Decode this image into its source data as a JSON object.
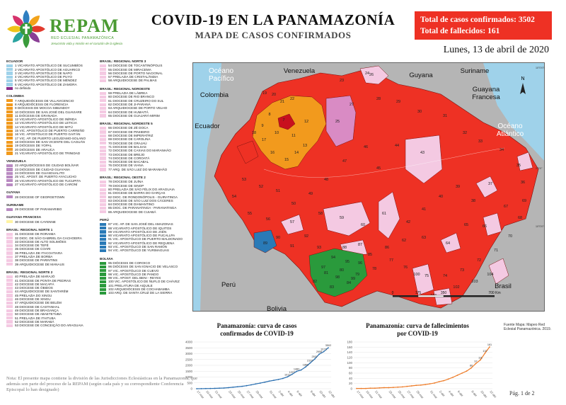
{
  "header": {
    "brand": "REPAM",
    "brand_sub": "RED ECLESIAL PANAMAZÓNICA",
    "brand_tag": "Jesucristo vida y misión en el corazón de la Iglesia",
    "title": "COVID-19 EN LA PANAMAZONÍA",
    "subtitle": "MAPA DE CASOS CONFIRMADOS",
    "total_cases": "Total de casos confirmados: 3502",
    "total_deaths": "Total de fallecidos: 161",
    "date": "Lunes, 13 de abril de 2020"
  },
  "colors": {
    "red": "#ee3124",
    "light_pink": "#f4c9e2",
    "orange": "#f29a1d",
    "dark_red": "#c8101e",
    "green": "#2a9a3c",
    "blue": "#2a7ab7",
    "purple": "#b98ac2",
    "light_blue": "#9fd2ea",
    "yellow": "#fff4a3",
    "gray": "#b5b5b5"
  },
  "legend": {
    "col1": [
      {
        "head": "ECUADOR"
      },
      {
        "color": "#9fd2ea",
        "label": "1  VICARIATO APOSTÓLICO DE SUCUMBÍOS"
      },
      {
        "color": "#9fd2ea",
        "label": "2  VICARIATO APOSTÓLICO DE AGUARICO"
      },
      {
        "color": "#9fd2ea",
        "label": "3  VICARIATO APOSTÓLICO DE NAPO"
      },
      {
        "color": "#9fd2ea",
        "label": "4  VICARIATO APOSTÓLICO DE PUYO"
      },
      {
        "color": "#9fd2ea",
        "label": "5  VICARIATO APOSTÓLICO DE MÉNDEZ"
      },
      {
        "color": "#9fd2ea",
        "label": "6  VICARIATO APOSTÓLICO DE ZAMORA"
      },
      {
        "color": "#8b2d8b",
        "label": "no definido"
      },
      {
        "head": "COLOMBIA"
      },
      {
        "color": "#f29a1d",
        "label": "7  ARQUIDIÓCESIS DE VILLAVICENCIO"
      },
      {
        "color": "#f29a1d",
        "label": "8  ARQUIDIÓCESIS DE FLORENCIA"
      },
      {
        "color": "#f29a1d",
        "label": "9  DIÓCESIS DE MOCOA-SIBUNDOY"
      },
      {
        "color": "#f29a1d",
        "label": "10  DIÓCESIS DE SAN JOSÉ DEL GUAVIARE"
      },
      {
        "color": "#f29a1d",
        "label": "11  DIÓCESIS DE GRANADA"
      },
      {
        "color": "#f29a1d",
        "label": "12  VICARIATO APOSTÓLICO DE INÍRIDA"
      },
      {
        "color": "#f29a1d",
        "label": "13  VICARIATO APOSTÓLICO DE LETICIA"
      },
      {
        "color": "#f29a1d",
        "label": "14  VICARIATO APOSTÓLICO DE MITÚ"
      },
      {
        "color": "#f29a1d",
        "label": "15  VIC. APOSTÓLICO DE PUERTO CARREÑO"
      },
      {
        "color": "#f29a1d",
        "label": "16  VIC. APOSTÓLICO DE PUERTO GAITÁN"
      },
      {
        "color": "#f29a1d",
        "label": "17  VIC. AP. DE PUERTO LEGUÍZAMO-SOLANO"
      },
      {
        "color": "#f29a1d",
        "label": "18  DIÓCESIS DE SAN VICENTE DEL CAGUÁN"
      },
      {
        "color": "#f29a1d",
        "label": "19  DIÓCESIS DE YOPAL"
      },
      {
        "color": "#f29a1d",
        "label": "20  DIÓCESIS DE ARAUCA"
      },
      {
        "color": "#f29a1d",
        "label": "21  VICARIATO APOSTÓLICO DE TRINIDAD"
      },
      {
        "head": "VENEZUELA"
      },
      {
        "color": "#b98ac2",
        "label": "22  ARQUIDIÓCESIS DE CIUDAD BOLÍVAR"
      },
      {
        "color": "#b98ac2",
        "label": "23  DIÓCESIS DE CIUDAD GUAYANA"
      },
      {
        "color": "#b98ac2",
        "label": "24  DIÓCESIS DE GUASDUALITO"
      },
      {
        "color": "#b98ac2",
        "label": "25  VIC. APOST. DE PUERTO AYACUCHO"
      },
      {
        "color": "#b98ac2",
        "label": "26  VICARIATO APOSTÓLICO DE TUCUPITA"
      },
      {
        "color": "#b98ac2",
        "label": "27  VICARIATO APOSTÓLICO DE CARONÍ"
      },
      {
        "head": "GUYANA"
      },
      {
        "color": "#b98ac2",
        "label": "28  DIOCESE OF GEORGETOWN"
      },
      {
        "head": "SURINAME"
      },
      {
        "color": "#b98ac2",
        "label": "29  DIOCESE OF PARAMARIBO"
      },
      {
        "head": "GUAYANA FRANCESA"
      },
      {
        "color": "#fff4a3",
        "label": "30  DIOCESE DE CAYENNE"
      },
      {
        "head": "BRASIL: REGIONAL NORTE 1"
      },
      {
        "color": "#f4c9e2",
        "label": "31  DIOCESE DE RORAIMA"
      },
      {
        "color": "#f4c9e2",
        "label": "32  DIOC. DE SÃO GABRIEL DA CACHOEIRA"
      },
      {
        "color": "#f4c9e2",
        "label": "33  DIOCESE DE ALTO SOLIMÕES"
      },
      {
        "color": "#f4c9e2",
        "label": "34  DIOCESE DE TEFÉ"
      },
      {
        "color": "#f4c9e2",
        "label": "35  DIOCESE DE COARI"
      },
      {
        "color": "#f4c9e2",
        "label": "36  PRELAZIA DE ITACOATIARA"
      },
      {
        "color": "#f4c9e2",
        "label": "37  PRELAZIA DE BORBA"
      },
      {
        "color": "#f4c9e2",
        "label": "38  DIOCESE DE PARINTINS"
      },
      {
        "color": "#f4c9e2",
        "label": "39  ARQUIDIOCESE DE MANAUS"
      },
      {
        "head": "BRASIL: REGIONAL NORTE 2"
      },
      {
        "color": "#f4c9e2",
        "label": "40  PRELAZIA DE MARAJÓ"
      },
      {
        "color": "#f4c9e2",
        "label": "41  DIOCESE DE PONTA DE PEDRAS"
      },
      {
        "color": "#f4c9e2",
        "label": "42  DIOCESE DE MACAPÁ"
      },
      {
        "color": "#f4c9e2",
        "label": "43  DIOCESE DE ÓBIDOS"
      },
      {
        "color": "#f4c9e2",
        "label": "44  ARQUIDIOCESE DE SANTARÉM"
      },
      {
        "color": "#f4c9e2",
        "label": "45  PRELAZIA DO XINGU"
      },
      {
        "color": "#f4c9e2",
        "label": "46  DIOCESE DE XINGU"
      },
      {
        "color": "#f4c9e2",
        "label": "47  ARQUIDIOCESE DE BELÉM"
      },
      {
        "color": "#f4c9e2",
        "label": "48  DIOCESE DE CASTANHAL"
      },
      {
        "color": "#f4c9e2",
        "label": "49  DIOCESE DE BRAGANÇA"
      },
      {
        "color": "#f4c9e2",
        "label": "50  DIOCESE DE ABAETETUBA"
      },
      {
        "color": "#f4c9e2",
        "label": "51  PRELAZIA DE ITAITUBA"
      },
      {
        "color": "#f4c9e2",
        "label": "52  DIOCESE DE MARABÁ"
      },
      {
        "color": "#f4c9e2",
        "label": "53  DIOCESE DE CONCEIÇÃO DO ARAGUAIA"
      }
    ],
    "col2": [
      {
        "head": "BRASIL: REGIONAL NORTE 3"
      },
      {
        "color": "#f4c9e2",
        "label": "54  DIOCESE DE TOCANTINÓPOLIS"
      },
      {
        "color": "#f4c9e2",
        "label": "55  DIOCESE DE MIRACEMA"
      },
      {
        "color": "#f4c9e2",
        "label": "56  DIOCESE DE PORTO NACIONAL"
      },
      {
        "color": "#f4c9e2",
        "label": "57  PRELAZIA DE CRISTALÂNDIA"
      },
      {
        "color": "#f4c9e2",
        "label": "58  ARQUIDIOCESE DE PALMAS"
      },
      {
        "head": "BRASIL: REGIONAL NOROESTE"
      },
      {
        "color": "#f4c9e2",
        "label": "59  PRELAZIA DE LÁBREA"
      },
      {
        "color": "#f4c9e2",
        "label": "60  DIOCESE DE RIO BRANCO"
      },
      {
        "color": "#f4c9e2",
        "label": "61  DIOCESE DE CRUZEIRO DO SUL"
      },
      {
        "color": "#f4c9e2",
        "label": "62  DIOCESE DE JI-PARANÁ"
      },
      {
        "color": "#f4c9e2",
        "label": "63  ARQUIDIOCESE DE PORTO VELHO"
      },
      {
        "color": "#f4c9e2",
        "label": "64  DIOCESE DE HUMAITÁ"
      },
      {
        "color": "#f4c9e2",
        "label": "65  DIOCESE DE GUAJARÁ-MIRIM"
      },
      {
        "head": "BRASIL: REGIONAL NORDESTE 5"
      },
      {
        "color": "#f4c9e2",
        "label": "66  DIOCESE DE ZÉ DOCA"
      },
      {
        "color": "#f4c9e2",
        "label": "67  DIOCESE DE PINHEIRO"
      },
      {
        "color": "#f4c9e2",
        "label": "68  DIOCESE DE IMPERATRIZ"
      },
      {
        "color": "#f4c9e2",
        "label": "69  DIOCESE DE CAROLINA"
      },
      {
        "color": "#f4c9e2",
        "label": "70  DIOCESE DE GRAJAÚ"
      },
      {
        "color": "#f4c9e2",
        "label": "71  DIOCESE DE BALSAS"
      },
      {
        "color": "#f4c9e2",
        "label": "72  DIOCESE DE CAXIAS DO MARANHÃO"
      },
      {
        "color": "#f4c9e2",
        "label": "73  DIOCESE DE BREJO"
      },
      {
        "color": "#f4c9e2",
        "label": "74  DIOCESE DE COROATÁ"
      },
      {
        "color": "#f4c9e2",
        "label": "75  DIOCESE DE BACABAL"
      },
      {
        "color": "#f4c9e2",
        "label": "76  DIOCESE DE VIANA"
      },
      {
        "color": "#f4c9e2",
        "label": "77  ARQ. DE SÃO LUIZ DO MARANHÃO"
      },
      {
        "head": "BRASIL: REGIONAL OESTE 2"
      },
      {
        "color": "#f4c9e2",
        "label": "78  DIOCESE DE JUÍNA"
      },
      {
        "color": "#f4c9e2",
        "label": "79  DIOCESE DE SINOP"
      },
      {
        "color": "#f4c9e2",
        "label": "80  PRELAZIA DE SÃO FÉLIX DO ARAGUAIA"
      },
      {
        "color": "#f4c9e2",
        "label": "81  DIOCESE DE BARRA DO GARÇAS"
      },
      {
        "color": "#f4c9e2",
        "label": "82  DIOC. DE RONDONÓPOLIS - GUIRATINGA"
      },
      {
        "color": "#f4c9e2",
        "label": "83  DIOCESE DE SÃO LUIZ DOS CÁCERES"
      },
      {
        "color": "#f4c9e2",
        "label": "84  DIOCESE DE DIAMANTINO"
      },
      {
        "color": "#f4c9e2",
        "label": "85  DIOC. DE PARANATINGA - PARANATINGA"
      },
      {
        "color": "#f4c9e2",
        "label": "86  ARQUIDIOCESE DE CUIABÁ"
      },
      {
        "head": "PERÚ"
      },
      {
        "color": "#2a7ab7",
        "label": "87  VIC. AP. DE SAN JOSÉ DEL AMAZONAS"
      },
      {
        "color": "#2a7ab7",
        "label": "88  VICARIATO APOSTÓLICO DE IQUITOS"
      },
      {
        "color": "#2a7ab7",
        "label": "89  VICARIATO APOSTÓLICO DE JAÉN"
      },
      {
        "color": "#2a7ab7",
        "label": "90  VICARIATO APOSTÓLICO DE PUCALLPA"
      },
      {
        "color": "#2a7ab7",
        "label": "91  VIC. APOSTÓLICO DE PUERTO MALDONADO"
      },
      {
        "color": "#2a7ab7",
        "label": "92  VICARIATO APOSTÓLICO DE REQUENA"
      },
      {
        "color": "#2a7ab7",
        "label": "93  VIC. APOSTÓLICO DE SAN RAMÓN"
      },
      {
        "color": "#2a7ab7",
        "label": "94  VIC. APOSTÓLICO DE YURIMAGUAS"
      },
      {
        "head": "BOLIVIA"
      },
      {
        "color": "#2a9a3c",
        "label": "95  DIÓCESIS DE COROICO"
      },
      {
        "color": "#2a9a3c",
        "label": "96  DIÓCESIS DE SAN IGNACIO DE VELASCO"
      },
      {
        "color": "#2a9a3c",
        "label": "97  VIC. APOSTÓLICO DE CUEVO"
      },
      {
        "color": "#2a9a3c",
        "label": "98  VIC. APOSTÓLICO DE PANDO"
      },
      {
        "color": "#2a9a3c",
        "label": "99  VIC. APOST. DEL BENI - REYES"
      },
      {
        "color": "#2a9a3c",
        "label": "100  VIC. APOSTÓLICO DE ÑUFLO DE CHÁVEZ"
      },
      {
        "color": "#2a9a3c",
        "label": "101  PRELATURA DE AIQUILE"
      },
      {
        "color": "#2a9a3c",
        "label": "102  ARQUIDIÓCESIS DE COCHABAMBA"
      },
      {
        "color": "#2a9a3c",
        "label": "103  ARQ. DE SANTA CRUZ DE LA SIERRA"
      }
    ]
  },
  "map": {
    "countries": [
      {
        "name": "Océano Pacífico",
        "lines": [
          "Océano",
          "Pacífico"
        ]
      },
      {
        "name": "Venezuela"
      },
      {
        "name": "Guyana"
      },
      {
        "name": "Suriname"
      },
      {
        "name": "Guayana Francesa",
        "lines": [
          "Guayana",
          "Francesa"
        ]
      },
      {
        "name": "Colombia"
      },
      {
        "name": "Ecuador"
      },
      {
        "name": "Océano Atlántico",
        "lines": [
          "Océano",
          "Atlántico"
        ]
      },
      {
        "name": "Perú"
      },
      {
        "name": "Bolivia"
      },
      {
        "name": "Brasil"
      }
    ],
    "region_numbers": [
      "19",
      "20",
      "21",
      "22",
      "7",
      "8",
      "9",
      "10",
      "11",
      "12",
      "13",
      "14",
      "15",
      "16",
      "17",
      "18",
      "23",
      "24",
      "25",
      "26",
      "27",
      "28",
      "29",
      "30",
      "31",
      "32",
      "33",
      "34",
      "35",
      "36",
      "37",
      "38",
      "39",
      "40",
      "41",
      "42",
      "43",
      "44",
      "45",
      "46",
      "47",
      "48",
      "49",
      "50",
      "51",
      "52",
      "53",
      "54",
      "55",
      "56",
      "57",
      "58",
      "59",
      "60",
      "61",
      "62",
      "63",
      "64",
      "65",
      "66",
      "67",
      "68",
      "69",
      "70",
      "71",
      "72",
      "73",
      "74",
      "75",
      "76",
      "77",
      "78",
      "79",
      "80",
      "81",
      "82",
      "83",
      "84",
      "85",
      "86",
      "87",
      "88",
      "89",
      "90",
      "91",
      "92",
      "93",
      "94",
      "95",
      "96",
      "97",
      "98",
      "99",
      "100",
      "101",
      "102",
      "103",
      "104"
    ],
    "scale": {
      "labels": [
        "0",
        "175",
        "350",
        "700 Km"
      ]
    },
    "lat_labels": [
      "0°0'0\"",
      "10°0'0\"S",
      "10°0'0\"N"
    ],
    "compass": "N"
  },
  "charts": [
    {
      "title": "Panamazonía: curva de casos confirmados de COVID-19",
      "title_lines": [
        "Panamazonía: curva de casos",
        "confirmados de COVID-19"
      ],
      "type": "line",
      "color": "#2a6fb0",
      "y_ticks": [
        "4000",
        "3500",
        "3000",
        "2500",
        "2000",
        "1500",
        "1000",
        "500",
        "0"
      ],
      "ylim": [
        0,
        4000
      ],
      "x_ticks": [
        "17-mar",
        "19-mar",
        "21-mar",
        "23-mar",
        "25-mar",
        "27-mar",
        "29-mar",
        "31-mar",
        "2-abr",
        "4-abr",
        "6-abr",
        "8-abr",
        "10-abr",
        "12-abr"
      ],
      "values": [
        1,
        5,
        15,
        20,
        30,
        45,
        60,
        90,
        130,
        165,
        205,
        260,
        330,
        410,
        480,
        560,
        650,
        720,
        790,
        880,
        1013,
        1227,
        1480,
        1600,
        1860,
        2197,
        2537,
        2958,
        3172,
        3502
      ],
      "point_labels": [
        "",
        "",
        "",
        "",
        "",
        "",
        "",
        "",
        "",
        "",
        "",
        "",
        "",
        "",
        "",
        "",
        "",
        "",
        "",
        "",
        "1013",
        "1227",
        "1480",
        "",
        "1860",
        "2197",
        "2537",
        "2958",
        "3172",
        "3502"
      ]
    },
    {
      "title": "Panamazonía: curva de fallecimientos por COVID-19",
      "title_lines": [
        "Panamazonía: curva de fallecimientos",
        "por COVID-19"
      ],
      "type": "line",
      "color": "#ee7d2a",
      "y_ticks": [
        "180",
        "160",
        "140",
        "120",
        "100",
        "80",
        "60",
        "40",
        "20",
        "0"
      ],
      "ylim": [
        0,
        180
      ],
      "x_ticks": [
        "17-mar",
        "19-mar",
        "21-mar",
        "23-mar",
        "25-mar",
        "27-mar",
        "29-mar",
        "31-mar",
        "2-abr",
        "4-abr",
        "6-abr",
        "8-abr",
        "10-abr",
        "12-abr"
      ],
      "values": [
        1,
        1,
        1,
        2,
        2,
        3,
        4,
        4,
        5,
        6,
        7,
        9,
        11,
        13,
        14,
        16,
        19,
        22,
        27,
        31,
        37,
        44,
        52,
        60,
        68,
        80,
        97,
        111,
        137,
        161
      ],
      "point_labels": [
        "",
        "",
        "",
        "",
        "",
        "",
        "",
        "",
        "",
        "",
        "",
        "",
        "",
        "",
        "",
        "",
        "",
        "",
        "",
        "",
        "",
        "",
        "",
        "",
        "",
        "80",
        "97",
        "111",
        "137",
        "161"
      ]
    }
  ],
  "footer": {
    "note": "Nota: El presente mapa contiene la división de las Jurisdicciones Eclesiásticas en la Panamazonía, que además son parte del proceso de la REPAM (según cada país y su correspondiente Conferencia Episcopal lo han designado)",
    "source": "Fuente Mapa: Mapeo Red Eclesial Panamazónica. 2019.",
    "page": "Pág. 1 de 2"
  }
}
